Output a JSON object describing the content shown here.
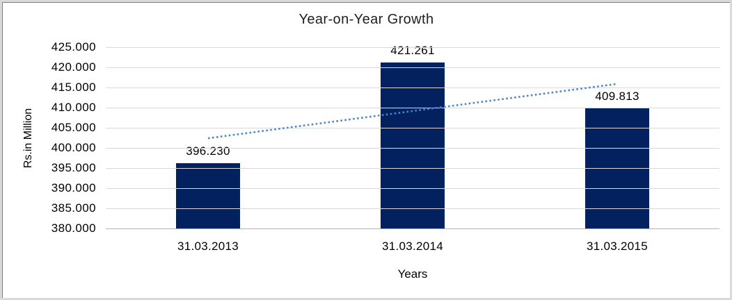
{
  "frame": {
    "outer_border_color": "#d9d9d9",
    "inner_border_color": "#7f7f7f",
    "background": "#ffffff"
  },
  "chart_data": {
    "type": "bar",
    "title": "Year-on-Year Growth",
    "xlabel": "Years",
    "ylabel": "Rs.in Million",
    "categories": [
      "31.03.2013",
      "31.03.2014",
      "31.03.2015"
    ],
    "values": [
      396.23,
      421.261,
      409.813
    ],
    "value_labels": [
      "396.230",
      "421.261",
      "409.813"
    ],
    "y_ticks": [
      "425.000",
      "420.000",
      "415.000",
      "410.000",
      "405.000",
      "400.000",
      "395.000",
      "390.000",
      "385.000",
      "380.000"
    ],
    "y_tick_values": [
      425,
      420,
      415,
      410,
      405,
      400,
      395,
      390,
      385,
      380
    ],
    "ylim": [
      380,
      425
    ],
    "grid": true,
    "legend": "none",
    "bar_color": "#03215f",
    "gridline_color": "#d9d9d9",
    "axis_line_color": "#b2b2b2",
    "trendline": {
      "style": "dotted",
      "color": "#4a86c8",
      "start_value": 402.4,
      "end_value": 415.9
    }
  }
}
